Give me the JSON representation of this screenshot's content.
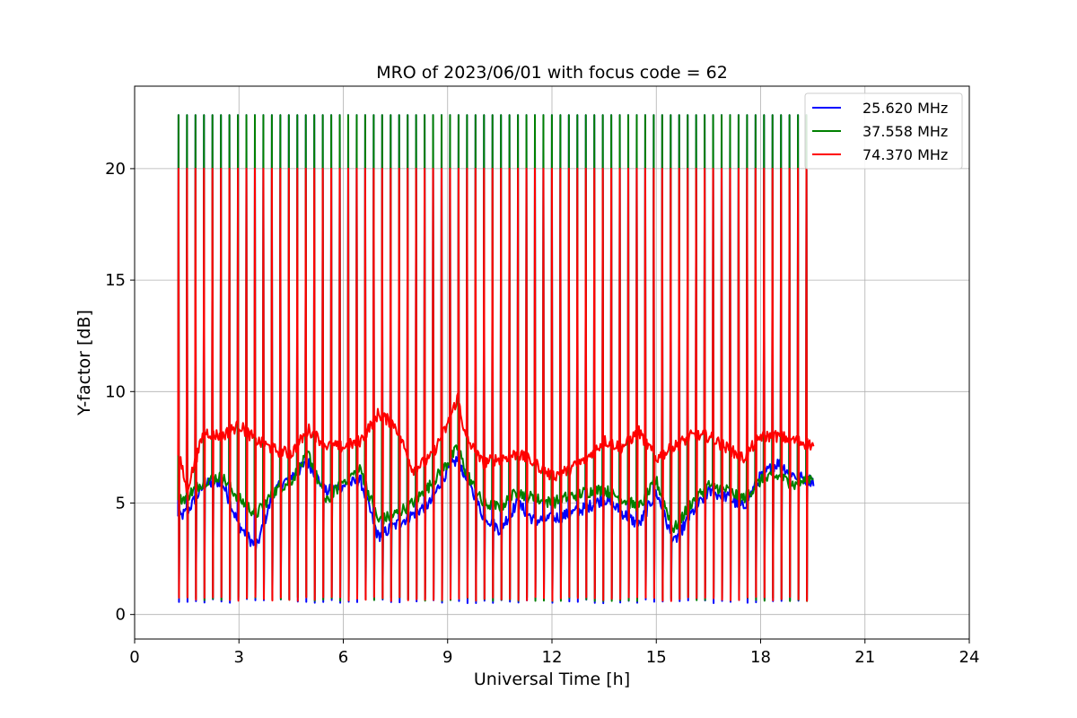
{
  "chart_data": {
    "type": "line",
    "title": "MRO of 2023/06/01 with focus code = 62",
    "xlabel": "Universal Time [h]",
    "ylabel": "Y-factor [dB]",
    "xlim": [
      0,
      24
    ],
    "ylim": [
      -1.1,
      23.7
    ],
    "xticks": [
      0,
      3,
      6,
      9,
      12,
      15,
      18,
      21,
      24
    ],
    "yticks": [
      0,
      5,
      10,
      15,
      20
    ],
    "grid": true,
    "legend_position": "top-right",
    "series": [
      {
        "name": "25.620 MHz",
        "color": "#0000ff",
        "x": [
          1.15,
          1.5,
          2.0,
          2.5,
          3.0,
          3.5,
          4.0,
          4.5,
          5.0,
          5.5,
          6.0,
          6.5,
          7.0,
          7.5,
          8.0,
          8.5,
          9.0,
          9.3,
          9.5,
          10.0,
          10.5,
          11.0,
          11.5,
          12.0,
          12.5,
          13.0,
          13.5,
          14.0,
          14.5,
          15.0,
          15.5,
          16.0,
          16.5,
          17.0,
          17.5,
          18.0,
          18.5,
          19.0,
          19.5
        ],
        "y": [
          4.2,
          4.6,
          5.8,
          6.0,
          4.0,
          3.0,
          5.5,
          6.2,
          6.8,
          5.5,
          5.8,
          6.0,
          3.5,
          4.0,
          4.5,
          5.0,
          6.5,
          7.0,
          6.2,
          4.5,
          3.8,
          5.0,
          4.2,
          4.3,
          4.5,
          4.8,
          5.2,
          4.6,
          4.0,
          5.5,
          3.2,
          4.5,
          5.5,
          5.3,
          4.8,
          6.2,
          6.8,
          6.2,
          6.0
        ],
        "pulse_low": 0.5,
        "pulse_high": 22.4
      },
      {
        "name": "37.558 MHz",
        "color": "#008000",
        "x": [
          1.15,
          1.5,
          2.0,
          2.5,
          3.0,
          3.5,
          4.0,
          4.5,
          5.0,
          5.5,
          6.0,
          6.5,
          7.0,
          7.5,
          8.0,
          8.5,
          9.0,
          9.3,
          9.5,
          10.0,
          10.5,
          11.0,
          11.5,
          12.0,
          12.5,
          13.0,
          13.5,
          14.0,
          14.5,
          15.0,
          15.5,
          16.0,
          16.5,
          17.0,
          17.5,
          18.0,
          18.5,
          19.0,
          19.5
        ],
        "y": [
          5.0,
          5.3,
          6.0,
          6.2,
          5.2,
          4.5,
          5.5,
          6.0,
          7.2,
          5.0,
          6.0,
          6.5,
          4.2,
          4.5,
          5.0,
          5.8,
          6.8,
          7.5,
          6.5,
          5.0,
          4.8,
          5.5,
          5.2,
          5.0,
          5.3,
          5.5,
          5.6,
          5.2,
          4.8,
          6.0,
          3.8,
          5.0,
          5.8,
          5.6,
          5.2,
          6.0,
          6.2,
          5.8,
          6.2
        ],
        "pulse_low": 0.6,
        "pulse_high": 22.4
      },
      {
        "name": "74.370 MHz",
        "color": "#ff0000",
        "x": [
          1.15,
          1.5,
          2.0,
          2.5,
          3.0,
          3.5,
          4.0,
          4.5,
          5.0,
          5.5,
          6.0,
          6.5,
          7.0,
          7.5,
          8.0,
          8.5,
          9.0,
          9.3,
          9.5,
          10.0,
          10.5,
          11.0,
          11.5,
          12.0,
          12.5,
          13.0,
          13.5,
          14.0,
          14.5,
          15.0,
          15.5,
          16.0,
          16.5,
          17.0,
          17.5,
          18.0,
          18.5,
          19.0,
          19.5
        ],
        "y": [
          8.0,
          5.6,
          8.2,
          8.0,
          8.5,
          7.8,
          7.4,
          7.2,
          8.3,
          7.6,
          7.5,
          7.8,
          9.0,
          8.5,
          6.5,
          7.0,
          8.5,
          9.8,
          8.0,
          6.8,
          7.0,
          7.2,
          6.8,
          6.2,
          6.5,
          7.0,
          7.8,
          7.5,
          8.2,
          7.0,
          7.5,
          8.0,
          8.0,
          7.5,
          7.0,
          8.0,
          8.0,
          7.8,
          7.6
        ],
        "pulse_low": 0.6,
        "pulse_high": 20.0
      }
    ],
    "pulses": {
      "start": 1.25,
      "end": 19.5,
      "period": 0.244
    }
  }
}
